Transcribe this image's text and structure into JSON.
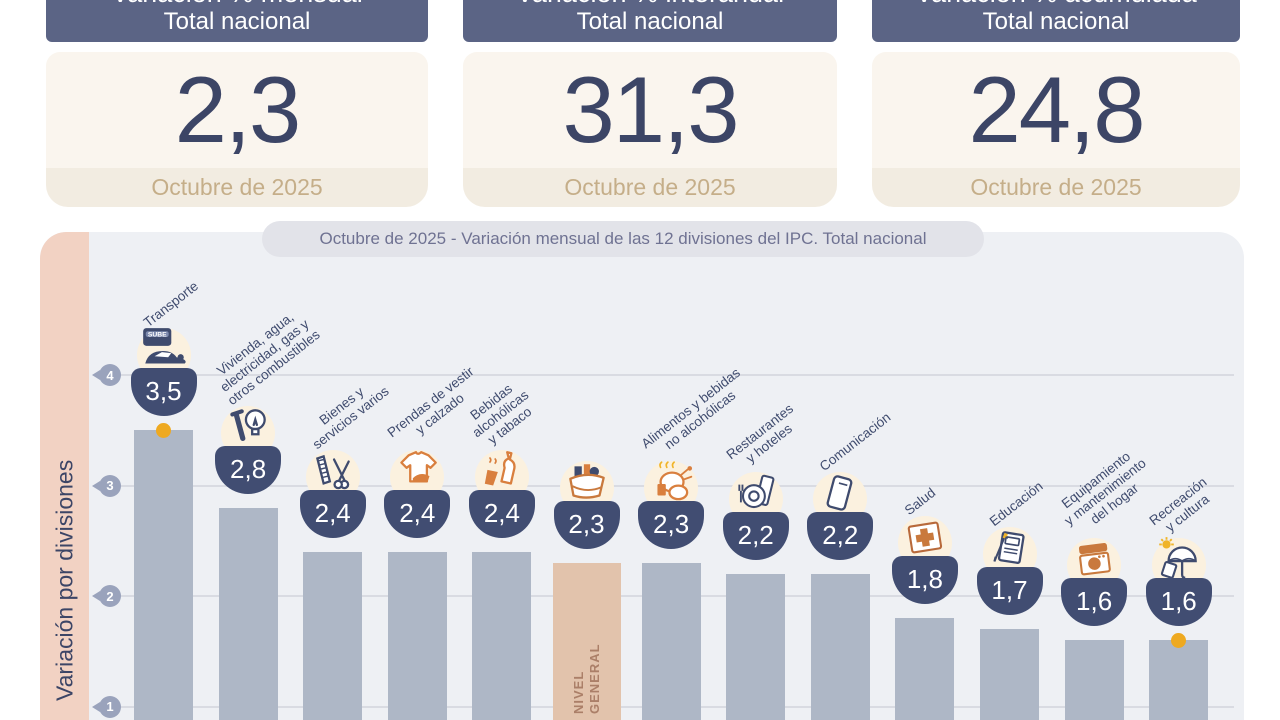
{
  "cards": [
    {
      "title_line1": "Variación % mensual",
      "title_line2": "Total nacional",
      "value": "2,3",
      "period": "Octubre de 2025"
    },
    {
      "title_line1": "Variación % interanual",
      "title_line2": "Total nacional",
      "value": "31,3",
      "period": "Octubre de 2025"
    },
    {
      "title_line1": "Variación % acumulada",
      "title_line2": "Total nacional",
      "value": "24,8",
      "period": "Octubre de 2025"
    }
  ],
  "chart_data": {
    "type": "bar",
    "title": "Octubre de 2025 - Variación mensual de las 12 divisiones del IPC. Total nacional",
    "ylabel": "Variación por divisiones",
    "yticks": [
      1,
      2,
      3,
      4
    ],
    "ylim": [
      0,
      4.4
    ],
    "grid": true,
    "categories": [
      "Transporte",
      "Vivienda, agua, electricidad, gas y otros combustibles",
      "Bienes y servicios varios",
      "Prendas de vestir y calzado",
      "Bebidas alcohólicas y tabaco",
      "NIVEL GENERAL",
      "Alimentos y bebidas no alcohólicas",
      "Restaurantes y hoteles",
      "Comunicación",
      "Salud",
      "Educación",
      "Equipamiento y mantenimiento del hogar",
      "Recreación y cultura"
    ],
    "values": [
      3.5,
      2.8,
      2.4,
      2.4,
      2.4,
      2.3,
      2.3,
      2.2,
      2.2,
      1.8,
      1.7,
      1.6,
      1.6
    ],
    "divisions": [
      {
        "label": "Transporte",
        "value": 3.5,
        "value_label": "3,5",
        "icon": "car-icon",
        "dot": true,
        "highlight": false,
        "bar_text": ""
      },
      {
        "label": "Vivienda, agua,\nelectricidad, gas y\notros combustibles",
        "value": 2.8,
        "value_label": "2,8",
        "icon": "bulb-icon",
        "dot": false,
        "highlight": false,
        "bar_text": ""
      },
      {
        "label": "Bienes y\nservicios varios",
        "value": 2.4,
        "value_label": "2,4",
        "icon": "scissors-icon",
        "dot": false,
        "highlight": false,
        "bar_text": ""
      },
      {
        "label": "Prendas de vestir\ny calzado",
        "value": 2.4,
        "value_label": "2,4",
        "icon": "tshirt-icon",
        "dot": false,
        "highlight": false,
        "bar_text": ""
      },
      {
        "label": "Bebidas\nalcohólicas\ny tabaco",
        "value": 2.4,
        "value_label": "2,4",
        "icon": "bottle-icon",
        "dot": false,
        "highlight": false,
        "bar_text": ""
      },
      {
        "label": "",
        "value": 2.3,
        "value_label": "2,3",
        "icon": "basket-icon",
        "dot": false,
        "highlight": true,
        "bar_text": "NIVEL\nGENERAL"
      },
      {
        "label": "Alimentos y bebidas\nno alcohólicas",
        "value": 2.3,
        "value_label": "2,3",
        "icon": "chicken-icon",
        "dot": false,
        "highlight": false,
        "bar_text": ""
      },
      {
        "label": "Restaurantes\ny hoteles",
        "value": 2.2,
        "value_label": "2,2",
        "icon": "plate-icon",
        "dot": false,
        "highlight": false,
        "bar_text": ""
      },
      {
        "label": "Comunicación",
        "value": 2.2,
        "value_label": "2,2",
        "icon": "phone-icon",
        "dot": false,
        "highlight": false,
        "bar_text": ""
      },
      {
        "label": "Salud",
        "value": 1.8,
        "value_label": "1,8",
        "icon": "firstaid-icon",
        "dot": false,
        "highlight": false,
        "bar_text": ""
      },
      {
        "label": "Educación",
        "value": 1.7,
        "value_label": "1,7",
        "icon": "book-icon",
        "dot": false,
        "highlight": false,
        "bar_text": ""
      },
      {
        "label": "Equipamiento\ny mantenimiento\ndel hogar",
        "value": 1.6,
        "value_label": "1,6",
        "icon": "washer-icon",
        "dot": false,
        "highlight": false,
        "bar_text": ""
      },
      {
        "label": "Recreación\ny cultura",
        "value": 1.6,
        "value_label": "1,6",
        "icon": "umbrella-icon",
        "dot": true,
        "highlight": false,
        "bar_text": ""
      }
    ]
  },
  "colors": {
    "header_navy": "#5b6485",
    "value_navy": "#3c4566",
    "card_body": "#faf5ee",
    "card_footer": "#f2ece1",
    "footer_text": "#c5ae89",
    "panel_bg": "#eef0f4",
    "pill_bg": "#e2e3e9",
    "strip_pink": "#f2d2c3",
    "bar_gray": "#aeb7c6",
    "bar_highlight": "#e2c3ac",
    "badge_navy": "#414d72",
    "icon_cream": "#fbf1df",
    "accent_orange": "#d97f3e",
    "dot_yellow": "#eea921",
    "grid": "#d9dbe2",
    "tick_bubble": "#9aa3bc"
  }
}
